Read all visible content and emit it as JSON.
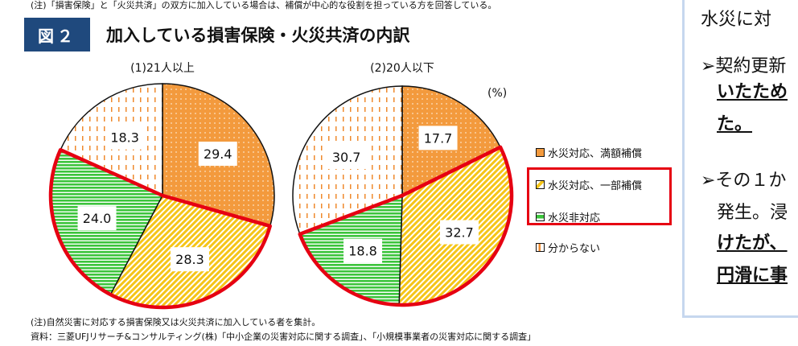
{
  "header": {
    "note": "(注)「損害保険」と「火災共済」の双方に加入している場合は、補償が中心的な役割を担っている方を回答している。",
    "figure_badge": "図２",
    "figure_title": "加入している損害保険・火災共済の内訳"
  },
  "chart_data": [
    {
      "type": "pie",
      "title": "(1)21人以上",
      "unit": "(%)",
      "categories": [
        "水災対応、満額補償",
        "水災対応、一部補償",
        "水災非対応",
        "分からない"
      ],
      "values": [
        29.4,
        28.3,
        24.0,
        18.3
      ],
      "start": "12 o'clock, clockwise",
      "highlighted": [
        "水災対応、一部補償",
        "水災非対応"
      ]
    },
    {
      "type": "pie",
      "title": "(2)20人以下",
      "unit": "(%)",
      "categories": [
        "水災対応、満額補償",
        "水災対応、一部補償",
        "水災非対応",
        "分からない"
      ],
      "values": [
        17.7,
        32.7,
        18.8,
        30.7
      ],
      "start": "12 o'clock, clockwise",
      "highlighted": [
        "水災対応、一部補償",
        "水災非対応"
      ]
    }
  ],
  "legend": {
    "unit": "(%)",
    "items": [
      {
        "label": "水災対応、満額補償",
        "color": "#f39a3d",
        "pattern": "dots"
      },
      {
        "label": "水災対応、一部補償",
        "color": "#f7d23a",
        "pattern": "diagonal-stripes"
      },
      {
        "label": "水災非対応",
        "color": "#3cc43c",
        "pattern": "horizontal-stripes"
      },
      {
        "label": "分からない",
        "color": "#ffffff",
        "pattern": "orange-dashes"
      }
    ],
    "highlight_color": "#e60012"
  },
  "footer": {
    "note": "(注)自然災害に対応する損害保険又は火災共済に加入している者を集計。",
    "source": "資料：三菱UFJリサーチ&コンサルティング(株)「中小企業の災害対応に関する調査」、「小規模事業者の災害対応に関する調査」"
  },
  "side_panel": {
    "lines": [
      "水災に対",
      "➢契約更新",
      "いたため",
      "た。",
      "➢その１か",
      "発生。浸",
      "けたが、",
      "円滑に事"
    ]
  }
}
